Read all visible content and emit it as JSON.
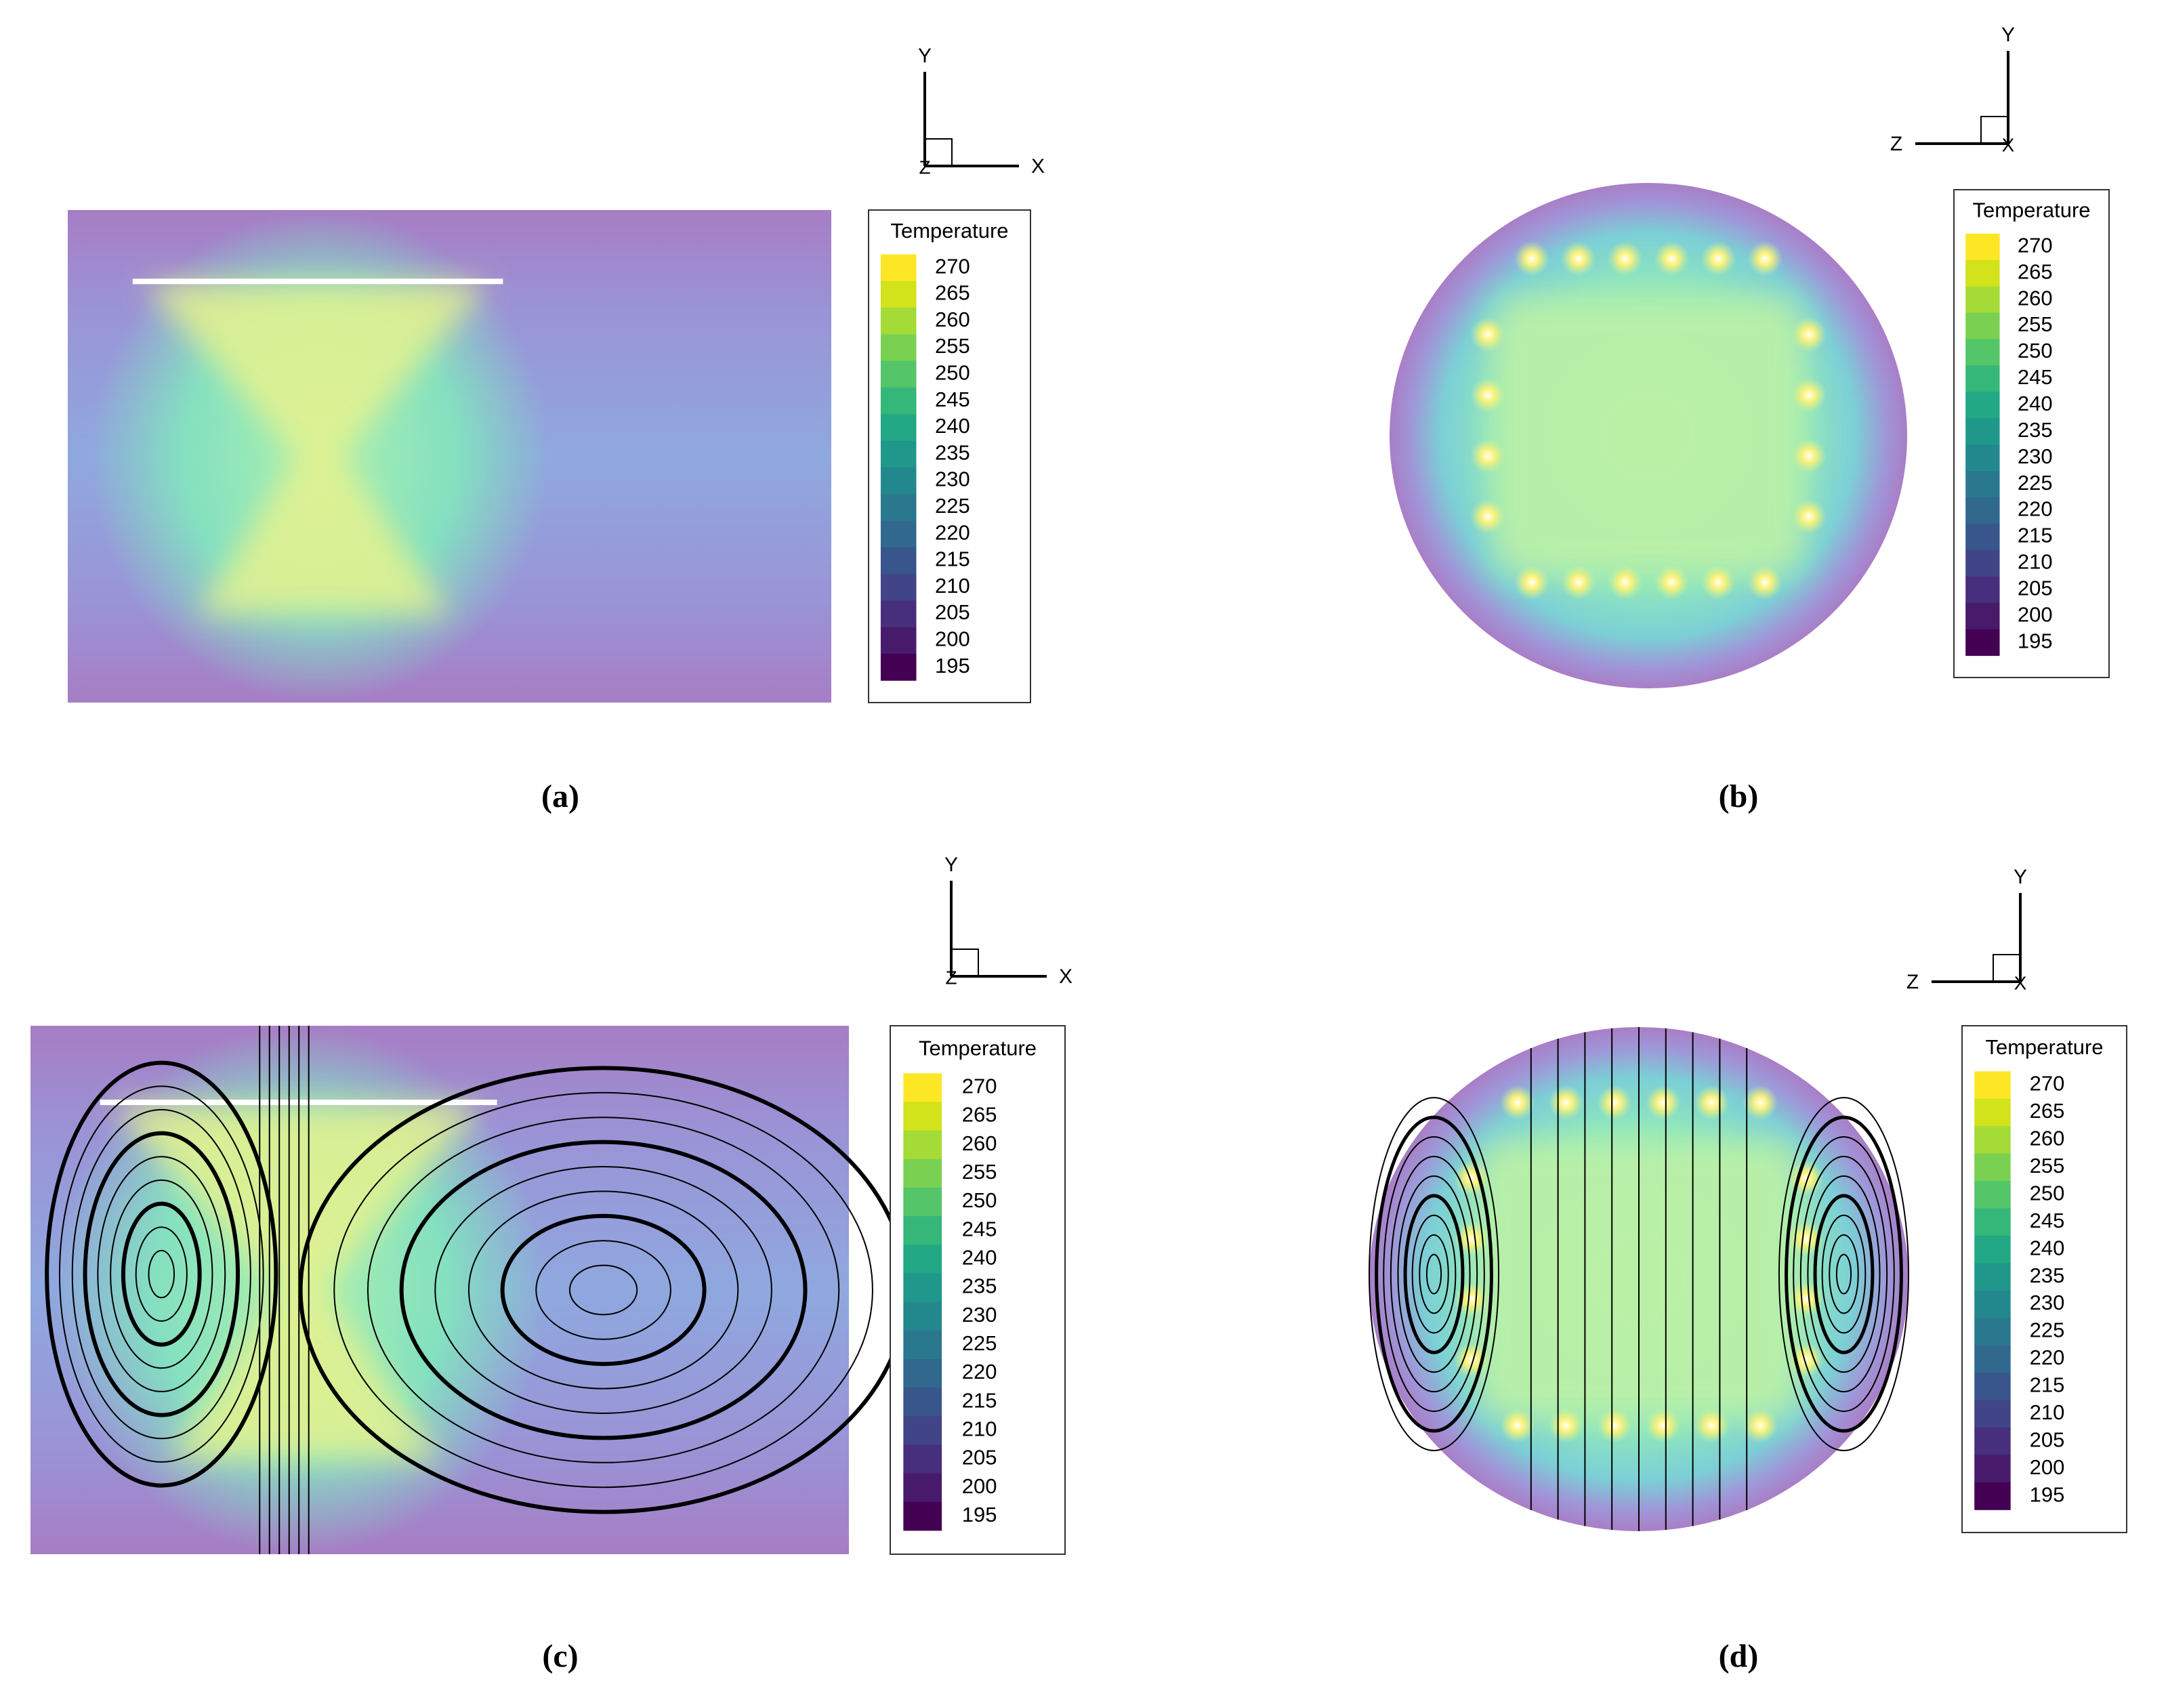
{
  "legend": {
    "title": "Temperature",
    "levels": [
      270,
      265,
      260,
      255,
      250,
      245,
      240,
      235,
      230,
      225,
      220,
      215,
      210,
      205,
      200,
      195
    ],
    "colors": [
      "#fde725",
      "#d2e21b",
      "#a5db36",
      "#7ad151",
      "#54c568",
      "#35b779",
      "#22a884",
      "#1f988b",
      "#23888e",
      "#2a788e",
      "#31688e",
      "#39568c",
      "#414487",
      "#472f7d",
      "#481a6c",
      "#440154"
    ]
  },
  "panels": [
    {
      "label": "(a)",
      "triad": [
        "Y",
        "X",
        "Z"
      ]
    },
    {
      "label": "(b)",
      "triad": [
        "Y",
        "Z",
        "X"
      ]
    },
    {
      "label": "(c)",
      "triad": [
        "Y",
        "X",
        "Z"
      ]
    },
    {
      "label": "(d)",
      "triad": [
        "Y",
        "Z",
        "X"
      ]
    }
  ]
}
